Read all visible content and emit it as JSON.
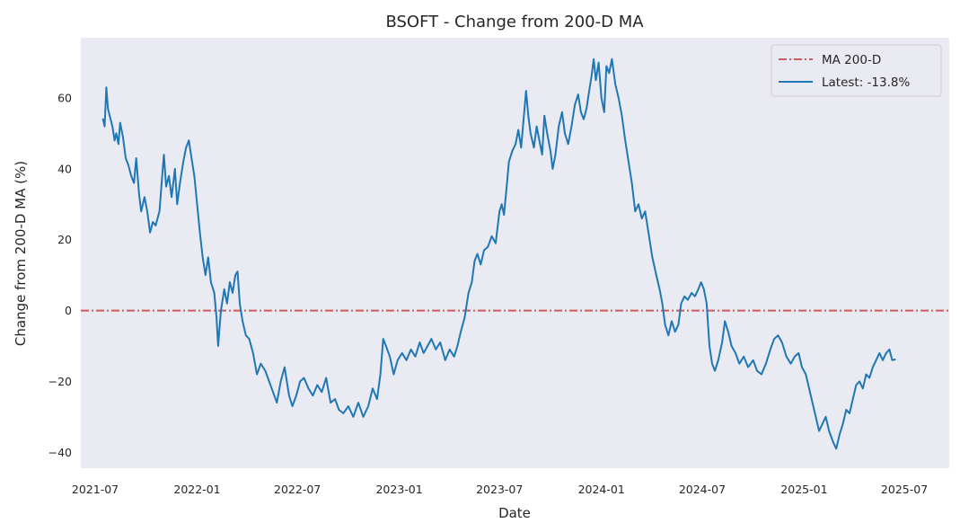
{
  "chart_data": {
    "type": "line",
    "title": "BSOFT - Change from 200-D MA",
    "xlabel": "Date",
    "ylabel": "Change from 200-D MA (%)",
    "xlim": [
      "2021-06-05",
      "2025-09-20"
    ],
    "ylim": [
      -44.5,
      77
    ],
    "grid": false,
    "legend_position": "top-right",
    "colors": {
      "plot_bg": "#eaeaf2",
      "series": "#1f77b4",
      "ma_line": "#cd5c5c"
    },
    "x_ticks": [
      {
        "date": "2021-07-01",
        "label": "2021-07"
      },
      {
        "date": "2022-01-01",
        "label": "2022-01"
      },
      {
        "date": "2022-07-01",
        "label": "2022-07"
      },
      {
        "date": "2023-01-01",
        "label": "2023-01"
      },
      {
        "date": "2023-07-01",
        "label": "2023-07"
      },
      {
        "date": "2024-01-01",
        "label": "2024-01"
      },
      {
        "date": "2024-07-01",
        "label": "2024-07"
      },
      {
        "date": "2025-01-01",
        "label": "2025-01"
      },
      {
        "date": "2025-07-01",
        "label": "2025-07"
      }
    ],
    "y_ticks": [
      {
        "value": 60,
        "label": "60"
      },
      {
        "value": 40,
        "label": "40"
      },
      {
        "value": 20,
        "label": "20"
      },
      {
        "value": 0,
        "label": "0"
      },
      {
        "value": -20,
        "label": "−20"
      },
      {
        "value": -40,
        "label": "−40"
      }
    ],
    "reference_line": {
      "name": "MA 200-D",
      "value": 0,
      "style": "dash-dot"
    },
    "series": [
      {
        "name": "Latest: -13.8%",
        "points": [
          [
            "2021-07-15",
            54
          ],
          [
            "2021-07-18",
            52
          ],
          [
            "2021-07-21",
            63
          ],
          [
            "2021-07-24",
            57
          ],
          [
            "2021-07-27",
            55
          ],
          [
            "2021-08-01",
            52
          ],
          [
            "2021-08-05",
            48
          ],
          [
            "2021-08-08",
            50
          ],
          [
            "2021-08-12",
            47
          ],
          [
            "2021-08-15",
            53
          ],
          [
            "2021-08-20",
            49
          ],
          [
            "2021-08-25",
            43
          ],
          [
            "2021-08-30",
            41
          ],
          [
            "2021-09-04",
            38
          ],
          [
            "2021-09-09",
            36
          ],
          [
            "2021-09-13",
            43
          ],
          [
            "2021-09-18",
            33
          ],
          [
            "2021-09-22",
            28
          ],
          [
            "2021-09-28",
            32
          ],
          [
            "2021-10-03",
            28
          ],
          [
            "2021-10-08",
            22
          ],
          [
            "2021-10-13",
            25
          ],
          [
            "2021-10-18",
            24
          ],
          [
            "2021-10-25",
            28
          ],
          [
            "2021-10-29",
            36
          ],
          [
            "2021-11-02",
            44
          ],
          [
            "2021-11-06",
            35
          ],
          [
            "2021-11-11",
            38
          ],
          [
            "2021-11-16",
            32
          ],
          [
            "2021-11-22",
            40
          ],
          [
            "2021-11-26",
            30
          ],
          [
            "2021-12-01",
            36
          ],
          [
            "2021-12-07",
            42
          ],
          [
            "2021-12-12",
            46
          ],
          [
            "2021-12-17",
            48
          ],
          [
            "2021-12-22",
            43
          ],
          [
            "2021-12-27",
            38
          ],
          [
            "2022-01-01",
            30
          ],
          [
            "2022-01-06",
            22
          ],
          [
            "2022-01-11",
            15
          ],
          [
            "2022-01-16",
            10
          ],
          [
            "2022-01-21",
            15
          ],
          [
            "2022-01-26",
            8
          ],
          [
            "2022-02-01",
            5
          ],
          [
            "2022-02-05",
            -2
          ],
          [
            "2022-02-08",
            -10
          ],
          [
            "2022-02-13",
            0
          ],
          [
            "2022-02-19",
            6
          ],
          [
            "2022-02-24",
            2
          ],
          [
            "2022-03-01",
            8
          ],
          [
            "2022-03-06",
            5
          ],
          [
            "2022-03-11",
            10
          ],
          [
            "2022-03-15",
            11
          ],
          [
            "2022-03-19",
            2
          ],
          [
            "2022-03-24",
            -3
          ],
          [
            "2022-03-30",
            -7
          ],
          [
            "2022-04-05",
            -8
          ],
          [
            "2022-04-12",
            -12
          ],
          [
            "2022-04-19",
            -18
          ],
          [
            "2022-04-26",
            -15
          ],
          [
            "2022-05-04",
            -17
          ],
          [
            "2022-05-11",
            -20
          ],
          [
            "2022-05-18",
            -23
          ],
          [
            "2022-05-25",
            -26
          ],
          [
            "2022-06-01",
            -20
          ],
          [
            "2022-06-08",
            -16
          ],
          [
            "2022-06-16",
            -24
          ],
          [
            "2022-06-22",
            -27
          ],
          [
            "2022-06-29",
            -24
          ],
          [
            "2022-07-06",
            -20
          ],
          [
            "2022-07-13",
            -19
          ],
          [
            "2022-07-21",
            -22
          ],
          [
            "2022-07-29",
            -24
          ],
          [
            "2022-08-06",
            -21
          ],
          [
            "2022-08-14",
            -23
          ],
          [
            "2022-08-22",
            -19
          ],
          [
            "2022-08-30",
            -26
          ],
          [
            "2022-09-07",
            -25
          ],
          [
            "2022-09-14",
            -28
          ],
          [
            "2022-09-22",
            -29
          ],
          [
            "2022-10-01",
            -27
          ],
          [
            "2022-10-10",
            -30
          ],
          [
            "2022-10-19",
            -26
          ],
          [
            "2022-10-28",
            -30
          ],
          [
            "2022-11-06",
            -27
          ],
          [
            "2022-11-14",
            -22
          ],
          [
            "2022-11-22",
            -25
          ],
          [
            "2022-11-28",
            -18
          ],
          [
            "2022-12-03",
            -8
          ],
          [
            "2022-12-08",
            -10
          ],
          [
            "2022-12-15",
            -13
          ],
          [
            "2022-12-22",
            -18
          ],
          [
            "2022-12-29",
            -14
          ],
          [
            "2023-01-06",
            -12
          ],
          [
            "2023-01-14",
            -14
          ],
          [
            "2023-01-22",
            -11
          ],
          [
            "2023-01-30",
            -13
          ],
          [
            "2023-02-07",
            -9
          ],
          [
            "2023-02-14",
            -12
          ],
          [
            "2023-02-21",
            -10
          ],
          [
            "2023-02-28",
            -8
          ],
          [
            "2023-03-08",
            -11
          ],
          [
            "2023-03-16",
            -9
          ],
          [
            "2023-03-25",
            -14
          ],
          [
            "2023-04-02",
            -11
          ],
          [
            "2023-04-10",
            -13
          ],
          [
            "2023-04-16",
            -10
          ],
          [
            "2023-04-22",
            -6
          ],
          [
            "2023-04-29",
            -2
          ],
          [
            "2023-05-06",
            5
          ],
          [
            "2023-05-12",
            8
          ],
          [
            "2023-05-17",
            14
          ],
          [
            "2023-05-22",
            16
          ],
          [
            "2023-05-28",
            13
          ],
          [
            "2023-06-03",
            17
          ],
          [
            "2023-06-10",
            18
          ],
          [
            "2023-06-17",
            21
          ],
          [
            "2023-06-24",
            19
          ],
          [
            "2023-07-01",
            28
          ],
          [
            "2023-07-05",
            30
          ],
          [
            "2023-07-09",
            27
          ],
          [
            "2023-07-14",
            35
          ],
          [
            "2023-07-18",
            42
          ],
          [
            "2023-07-24",
            45
          ],
          [
            "2023-07-30",
            47
          ],
          [
            "2023-08-04",
            51
          ],
          [
            "2023-08-09",
            46
          ],
          [
            "2023-08-14",
            55
          ],
          [
            "2023-08-18",
            62
          ],
          [
            "2023-08-22",
            55
          ],
          [
            "2023-08-26",
            50
          ],
          [
            "2023-09-01",
            46
          ],
          [
            "2023-09-06",
            52
          ],
          [
            "2023-09-11",
            48
          ],
          [
            "2023-09-16",
            44
          ],
          [
            "2023-09-20",
            55
          ],
          [
            "2023-09-25",
            50
          ],
          [
            "2023-10-01",
            45
          ],
          [
            "2023-10-05",
            40
          ],
          [
            "2023-10-10",
            44
          ],
          [
            "2023-10-16",
            52
          ],
          [
            "2023-10-22",
            56
          ],
          [
            "2023-10-27",
            50
          ],
          [
            "2023-11-02",
            47
          ],
          [
            "2023-11-08",
            52
          ],
          [
            "2023-11-14",
            58
          ],
          [
            "2023-11-20",
            61
          ],
          [
            "2023-11-25",
            56
          ],
          [
            "2023-11-30",
            54
          ],
          [
            "2023-12-05",
            57
          ],
          [
            "2023-12-10",
            62
          ],
          [
            "2023-12-14",
            66
          ],
          [
            "2023-12-18",
            71
          ],
          [
            "2023-12-22",
            65
          ],
          [
            "2023-12-27",
            70
          ],
          [
            "2024-01-01",
            60
          ],
          [
            "2024-01-06",
            56
          ],
          [
            "2024-01-10",
            69
          ],
          [
            "2024-01-15",
            67
          ],
          [
            "2024-01-20",
            71
          ],
          [
            "2024-01-26",
            64
          ],
          [
            "2024-02-01",
            60
          ],
          [
            "2024-02-07",
            55
          ],
          [
            "2024-02-13",
            48
          ],
          [
            "2024-02-19",
            42
          ],
          [
            "2024-02-25",
            36
          ],
          [
            "2024-03-02",
            28
          ],
          [
            "2024-03-08",
            30
          ],
          [
            "2024-03-14",
            26
          ],
          [
            "2024-03-20",
            28
          ],
          [
            "2024-03-26",
            22
          ],
          [
            "2024-04-02",
            15
          ],
          [
            "2024-04-09",
            10
          ],
          [
            "2024-04-15",
            6
          ],
          [
            "2024-04-20",
            2
          ],
          [
            "2024-04-25",
            -4
          ],
          [
            "2024-05-01",
            -7
          ],
          [
            "2024-05-07",
            -3
          ],
          [
            "2024-05-13",
            -6
          ],
          [
            "2024-05-19",
            -4
          ],
          [
            "2024-05-24",
            2
          ],
          [
            "2024-05-30",
            4
          ],
          [
            "2024-06-05",
            3
          ],
          [
            "2024-06-12",
            5
          ],
          [
            "2024-06-18",
            4
          ],
          [
            "2024-06-24",
            6
          ],
          [
            "2024-06-29",
            8
          ],
          [
            "2024-07-04",
            6
          ],
          [
            "2024-07-09",
            2
          ],
          [
            "2024-07-14",
            -10
          ],
          [
            "2024-07-19",
            -15
          ],
          [
            "2024-07-24",
            -17
          ],
          [
            "2024-07-30",
            -14
          ],
          [
            "2024-08-06",
            -9
          ],
          [
            "2024-08-11",
            -3
          ],
          [
            "2024-08-17",
            -6
          ],
          [
            "2024-08-23",
            -10
          ],
          [
            "2024-08-30",
            -12
          ],
          [
            "2024-09-06",
            -15
          ],
          [
            "2024-09-14",
            -13
          ],
          [
            "2024-09-22",
            -16
          ],
          [
            "2024-10-01",
            -14
          ],
          [
            "2024-10-08",
            -17
          ],
          [
            "2024-10-16",
            -18
          ],
          [
            "2024-10-24",
            -15
          ],
          [
            "2024-11-01",
            -11
          ],
          [
            "2024-11-08",
            -8
          ],
          [
            "2024-11-15",
            -7
          ],
          [
            "2024-11-22",
            -9
          ],
          [
            "2024-11-30",
            -13
          ],
          [
            "2024-12-08",
            -15
          ],
          [
            "2024-12-15",
            -13
          ],
          [
            "2024-12-22",
            -12
          ],
          [
            "2024-12-28",
            -16
          ],
          [
            "2025-01-04",
            -18
          ],
          [
            "2025-01-10",
            -22
          ],
          [
            "2025-01-16",
            -26
          ],
          [
            "2025-01-22",
            -30
          ],
          [
            "2025-01-28",
            -34
          ],
          [
            "2025-02-03",
            -32
          ],
          [
            "2025-02-09",
            -30
          ],
          [
            "2025-02-15",
            -34
          ],
          [
            "2025-02-22",
            -37
          ],
          [
            "2025-02-28",
            -39
          ],
          [
            "2025-03-06",
            -35
          ],
          [
            "2025-03-12",
            -32
          ],
          [
            "2025-03-18",
            -28
          ],
          [
            "2025-03-24",
            -29
          ],
          [
            "2025-03-30",
            -25
          ],
          [
            "2025-04-05",
            -21
          ],
          [
            "2025-04-11",
            -20
          ],
          [
            "2025-04-17",
            -22
          ],
          [
            "2025-04-23",
            -18
          ],
          [
            "2025-04-29",
            -19
          ],
          [
            "2025-05-05",
            -16
          ],
          [
            "2025-05-11",
            -14
          ],
          [
            "2025-05-17",
            -12
          ],
          [
            "2025-05-23",
            -14
          ],
          [
            "2025-05-29",
            -12
          ],
          [
            "2025-06-04",
            -11
          ],
          [
            "2025-06-09",
            -14
          ],
          [
            "2025-06-14",
            -13.8
          ]
        ]
      }
    ]
  }
}
